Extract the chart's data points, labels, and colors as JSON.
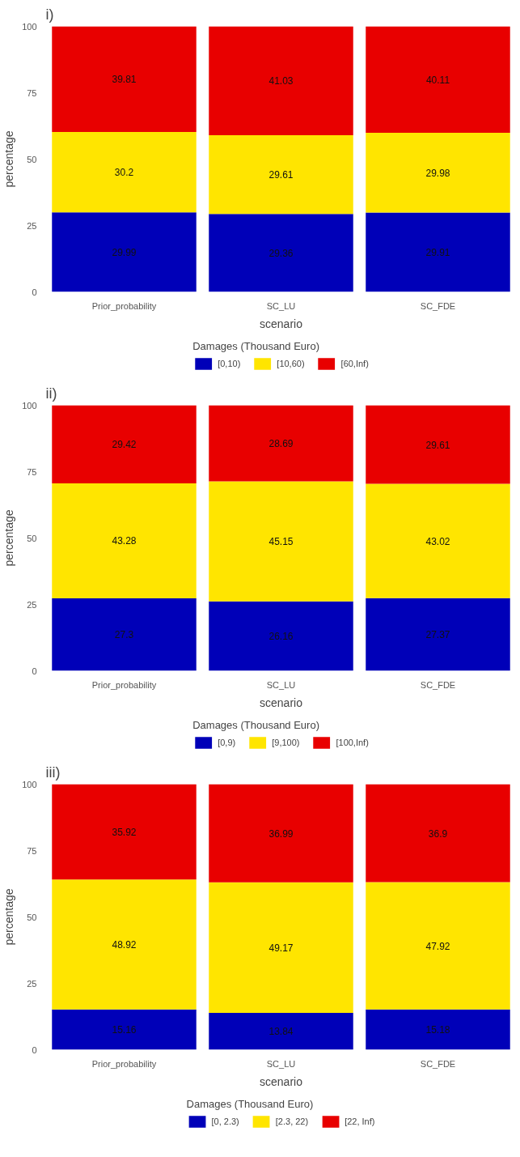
{
  "chart_data": [
    {
      "type": "bar",
      "title": "i)",
      "xlabel": "scenario",
      "ylabel": "percentage",
      "legend_title": "Damages (Thousand Euro)",
      "categories": [
        "Prior_probability",
        "SC_LU",
        "SC_FDE"
      ],
      "stacked": true,
      "data_labels": true,
      "legend": "bottom",
      "grid": false,
      "ylim": [
        0,
        100
      ],
      "yticks": [
        0,
        25,
        50,
        75,
        100
      ],
      "series": [
        {
          "name": "[0,10)",
          "color": "#0000b8",
          "values": [
            29.99,
            29.36,
            29.91
          ]
        },
        {
          "name": "[10,60)",
          "color": "#ffe500",
          "values": [
            30.2,
            29.61,
            29.98
          ]
        },
        {
          "name": "[60,Inf)",
          "color": "#e80000",
          "values": [
            39.81,
            41.03,
            40.11
          ]
        }
      ]
    },
    {
      "type": "bar",
      "title": "ii)",
      "xlabel": "scenario",
      "ylabel": "percentage",
      "legend_title": "Damages (Thousand Euro)",
      "categories": [
        "Prior_probability",
        "SC_LU",
        "SC_FDE"
      ],
      "stacked": true,
      "data_labels": true,
      "legend": "bottom",
      "grid": false,
      "ylim": [
        0,
        100
      ],
      "yticks": [
        0,
        25,
        50,
        75,
        100
      ],
      "series": [
        {
          "name": "[0,9)",
          "color": "#0000b8",
          "values": [
            27.3,
            26.16,
            27.37
          ]
        },
        {
          "name": "[9,100)",
          "color": "#ffe500",
          "values": [
            43.28,
            45.15,
            43.02
          ]
        },
        {
          "name": "[100,Inf)",
          "color": "#e80000",
          "values": [
            29.42,
            28.69,
            29.61
          ]
        }
      ]
    },
    {
      "type": "bar",
      "title": "iii)",
      "xlabel": "scenario",
      "ylabel": "percentage",
      "legend_title": "Damages (Thousand Euro)",
      "categories": [
        "Prior_probability",
        "SC_LU",
        "SC_FDE"
      ],
      "stacked": true,
      "data_labels": true,
      "legend": "bottom",
      "grid": false,
      "ylim": [
        0,
        100
      ],
      "yticks": [
        0,
        25,
        50,
        75,
        100
      ],
      "series": [
        {
          "name": "[0, 2.3)",
          "color": "#0000b8",
          "values": [
            15.16,
            13.84,
            15.18
          ]
        },
        {
          "name": "[2.3, 22)",
          "color": "#ffe500",
          "values": [
            48.92,
            49.17,
            47.92
          ]
        },
        {
          "name": "[22, Inf)",
          "color": "#e80000",
          "values": [
            35.92,
            36.99,
            36.9
          ]
        }
      ]
    }
  ]
}
